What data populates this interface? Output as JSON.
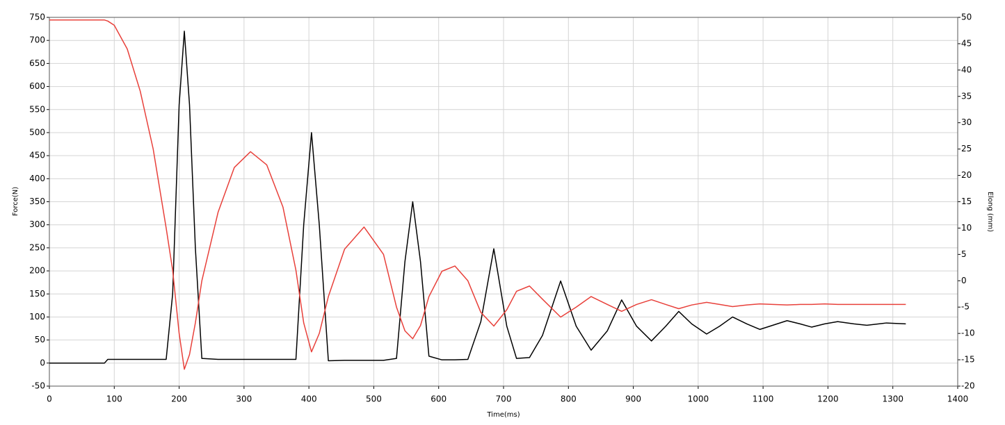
{
  "chart_data": {
    "type": "line",
    "xlabel": "Time(ms)",
    "ylabel": "Force(N)",
    "y2label": "Elong (mm)",
    "xlim": [
      0,
      1400
    ],
    "xticks": [
      0,
      100,
      200,
      300,
      400,
      500,
      600,
      700,
      800,
      900,
      1000,
      1100,
      1200,
      1300,
      1400
    ],
    "ylim": [
      -50,
      750
    ],
    "yticks": [
      -50,
      0,
      50,
      100,
      150,
      200,
      250,
      300,
      350,
      400,
      450,
      500,
      550,
      600,
      650,
      700,
      750
    ],
    "y2lim": [
      -20,
      50
    ],
    "y2ticks": [
      -20,
      -15,
      -10,
      -5,
      0,
      5,
      10,
      15,
      20,
      25,
      30,
      35,
      40,
      45,
      50
    ],
    "grid": true,
    "x": [
      0,
      50,
      85,
      90,
      100,
      120,
      140,
      160,
      180,
      190,
      200,
      208,
      216,
      225,
      235,
      260,
      285,
      310,
      335,
      360,
      380,
      392,
      404,
      416,
      430,
      455,
      485,
      515,
      535,
      548,
      560,
      572,
      585,
      605,
      625,
      645,
      665,
      685,
      705,
      720,
      740,
      760,
      788,
      812,
      835,
      860,
      882,
      905,
      928,
      950,
      970,
      990,
      1013,
      1033,
      1053,
      1075,
      1095,
      1115,
      1137,
      1157,
      1175,
      1195,
      1215,
      1240,
      1260,
      1290,
      1320
    ],
    "series": [
      {
        "color": "#000000",
        "values": [
          0,
          0,
          0,
          8,
          8,
          8,
          8,
          8,
          8,
          150,
          560,
          720,
          560,
          250,
          10,
          8,
          8,
          8,
          8,
          8,
          8,
          300,
          500,
          300,
          5,
          6,
          6,
          6,
          10,
          220,
          350,
          220,
          15,
          7,
          7,
          8,
          90,
          248,
          80,
          10,
          12,
          60,
          178,
          80,
          28,
          70,
          137,
          80,
          48,
          80,
          112,
          85,
          63,
          80,
          100,
          85,
          73,
          82,
          92,
          85,
          78,
          85,
          90,
          85,
          82,
          87,
          85
        ]
      },
      {
        "color": "#e8403a",
        "axis": "y2",
        "values": [
          49.5,
          49.5,
          49.5,
          49.3,
          48.5,
          44,
          36,
          25,
          10,
          2,
          -10,
          -16.8,
          -14,
          -8,
          0,
          13,
          21.5,
          24.5,
          22,
          14,
          2,
          -8,
          -13.5,
          -10,
          -3,
          6,
          10.2,
          5,
          -5,
          -9.5,
          -11,
          -8.5,
          -3,
          1.8,
          2.8,
          0,
          -6,
          -8.6,
          -5.5,
          -2,
          -1,
          -3.5,
          -6.9,
          -5,
          -3,
          -4.5,
          -5.8,
          -4.5,
          -3.6,
          -4.5,
          -5.3,
          -4.6,
          -4.1,
          -4.5,
          -4.9,
          -4.6,
          -4.4,
          -4.5,
          -4.6,
          -4.5,
          -4.5,
          -4.4,
          -4.5,
          -4.5,
          -4.5,
          -4.5,
          -4.5
        ]
      }
    ]
  }
}
